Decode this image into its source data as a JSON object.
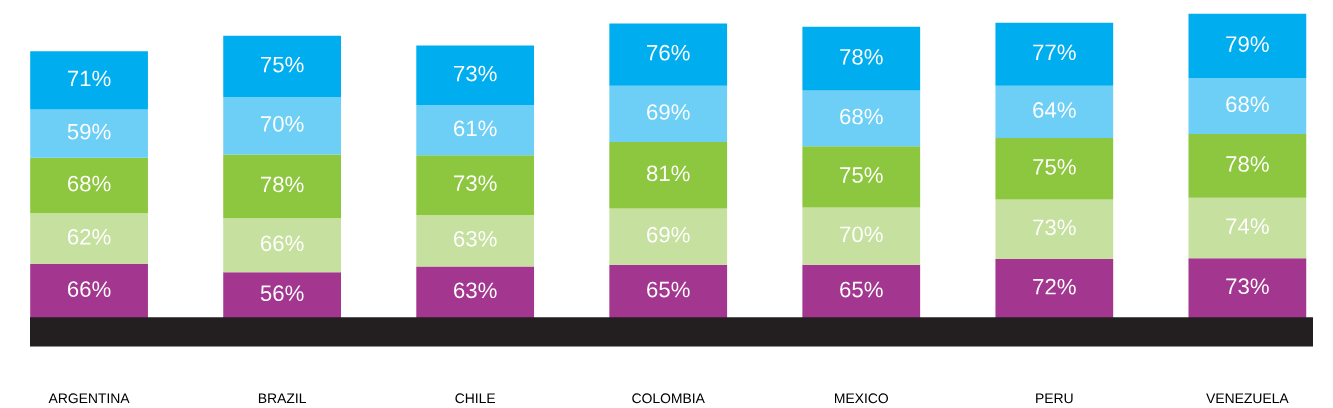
{
  "chart_data": {
    "type": "bar",
    "stacked": true,
    "grid": false,
    "legend": false,
    "categories": [
      "ARGENTINA",
      "BRAZIL",
      "CHILE",
      "COLOMBIA",
      "MEXICO",
      "PERU",
      "VENEZUELA"
    ],
    "series": [
      {
        "color": "#a3378f",
        "values": [
          66,
          56,
          63,
          65,
          65,
          72,
          73
        ],
        "value_labels": [
          "66%",
          "56%",
          "63%",
          "65%",
          "65%",
          "72%",
          "73%"
        ]
      },
      {
        "color": "#c6e09f",
        "values": [
          62,
          66,
          63,
          69,
          70,
          73,
          74
        ],
        "value_labels": [
          "62%",
          "66%",
          "63%",
          "69%",
          "70%",
          "73%",
          "74%"
        ]
      },
      {
        "color": "#8dc63f",
        "values": [
          68,
          78,
          73,
          81,
          75,
          75,
          78
        ],
        "value_labels": [
          "68%",
          "78%",
          "73%",
          "81%",
          "75%",
          "75%",
          "78%"
        ]
      },
      {
        "color": "#6dcff6",
        "values": [
          59,
          70,
          61,
          69,
          68,
          64,
          68
        ],
        "value_labels": [
          "59%",
          "70%",
          "61%",
          "69%",
          "68%",
          "64%",
          "68%"
        ]
      },
      {
        "color": "#00aeef",
        "values": [
          71,
          75,
          73,
          76,
          78,
          77,
          79
        ],
        "value_labels": [
          "71%",
          "75%",
          "73%",
          "76%",
          "78%",
          "77%",
          "79%"
        ]
      }
    ]
  }
}
